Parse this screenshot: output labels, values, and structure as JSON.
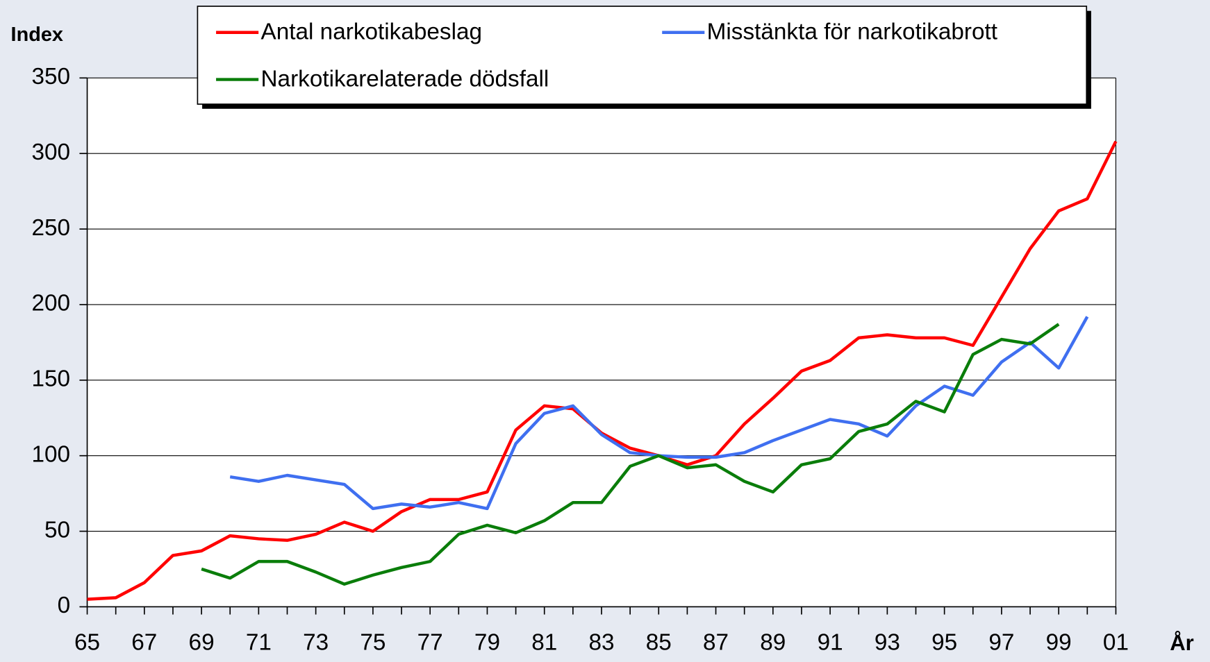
{
  "chart_data": {
    "type": "line",
    "y_label": "Index",
    "x_label": "År",
    "categories": [
      "65",
      null,
      "67",
      null,
      "69",
      null,
      "71",
      null,
      "73",
      null,
      "75",
      null,
      "77",
      null,
      "79",
      null,
      "81",
      null,
      "83",
      null,
      "85",
      null,
      "87",
      null,
      "89",
      null,
      "91",
      null,
      "93",
      null,
      "95",
      null,
      "97",
      null,
      "99",
      null,
      "01"
    ],
    "series": [
      {
        "name": "Antal narkotikabeslag",
        "color": "#ff0000",
        "values": [
          5,
          6,
          16,
          34,
          37,
          47,
          45,
          44,
          48,
          56,
          50,
          63,
          71,
          71,
          76,
          117,
          133,
          131,
          115,
          105,
          100,
          94,
          100,
          121,
          138,
          156,
          163,
          178,
          180,
          178,
          178,
          173,
          205,
          237,
          262,
          270,
          308
        ]
      },
      {
        "name": "Misstänkta för narkotikabrott",
        "color": "#3f6ff0",
        "values": [
          null,
          null,
          null,
          null,
          null,
          86,
          83,
          87,
          84,
          81,
          65,
          68,
          66,
          69,
          65,
          108,
          128,
          133,
          114,
          102,
          100,
          99,
          99,
          102,
          110,
          117,
          124,
          121,
          113,
          133,
          146,
          140,
          162,
          175,
          158,
          192,
          null
        ]
      },
      {
        "name": "Narkotikarelaterade dödsfall",
        "color": "#0a7d0a",
        "values": [
          null,
          null,
          null,
          null,
          25,
          19,
          30,
          30,
          23,
          15,
          21,
          26,
          30,
          48,
          54,
          49,
          57,
          69,
          69,
          93,
          100,
          92,
          94,
          83,
          76,
          94,
          98,
          116,
          121,
          136,
          129,
          167,
          177,
          174,
          187,
          null,
          null
        ]
      }
    ],
    "ylim": [
      0,
      350
    ],
    "yticks": [
      0,
      50,
      100,
      150,
      200,
      250,
      300,
      350
    ],
    "grid": true
  }
}
